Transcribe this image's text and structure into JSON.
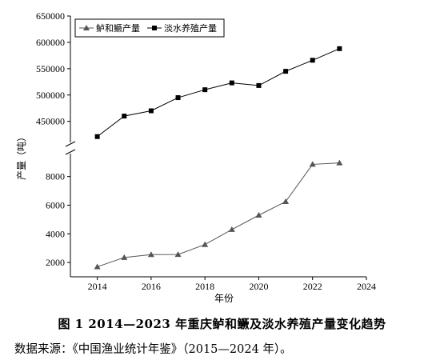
{
  "chart_data": {
    "type": "line",
    "x": [
      2014,
      2015,
      2016,
      2017,
      2018,
      2019,
      2020,
      2021,
      2022,
      2023
    ],
    "xlabel": "年份",
    "ylabel": "产量（吨）",
    "x_ticks": [
      "2014",
      "2016",
      "2018",
      "2020",
      "2022",
      "2024"
    ],
    "x_range": [
      2013,
      2024
    ],
    "y_axis_break": true,
    "upper_ylim": [
      410000,
      650000
    ],
    "upper_ticks": [
      "450000",
      "500000",
      "550000",
      "600000",
      "650000"
    ],
    "lower_ylim": [
      1000,
      9600
    ],
    "lower_ticks": [
      "2000",
      "4000",
      "6000",
      "8000"
    ],
    "legend_position": "top-left",
    "series": [
      {
        "name": "鲈和鳜产量",
        "marker": "triangle",
        "color": "#555555",
        "values": [
          1700,
          2350,
          2550,
          2560,
          3250,
          4300,
          5300,
          6250,
          8850,
          8950
        ]
      },
      {
        "name": "淡水养殖产量",
        "marker": "square",
        "color": "#000000",
        "values": [
          421000,
          460000,
          470000,
          495000,
          510000,
          523000,
          518000,
          545000,
          566000,
          588000
        ]
      }
    ]
  },
  "caption": {
    "title": "图 1   2014—2023 年重庆鲈和鳜及淡水养殖产量变化趋势",
    "source": "数据来源：《中国渔业统计年鉴》（2015—2024 年）。"
  }
}
